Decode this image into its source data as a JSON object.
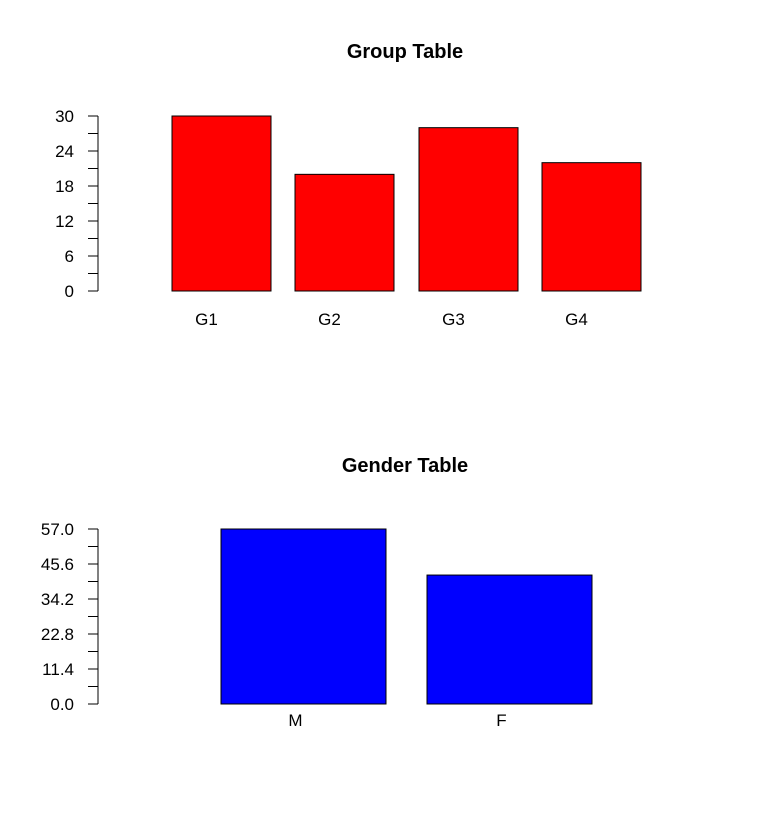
{
  "chart_data": [
    {
      "type": "bar",
      "title": "Group Table",
      "categories": [
        "G1",
        "G2",
        "G3",
        "G4"
      ],
      "values": [
        30,
        20,
        28,
        22
      ],
      "ylim": [
        0,
        30
      ],
      "yticks": [
        "0",
        "6",
        "12",
        "18",
        "24",
        "30"
      ],
      "bar_color": "#ff0000",
      "grid": false
    },
    {
      "type": "bar",
      "title": "Gender Table",
      "categories": [
        "M",
        "F"
      ],
      "values": [
        57,
        42
      ],
      "ylim": [
        0,
        57
      ],
      "yticks": [
        "0.0",
        "11.4",
        "22.8",
        "34.2",
        "45.6",
        "57.0"
      ],
      "bar_color": "#0000ff",
      "grid": false
    }
  ]
}
